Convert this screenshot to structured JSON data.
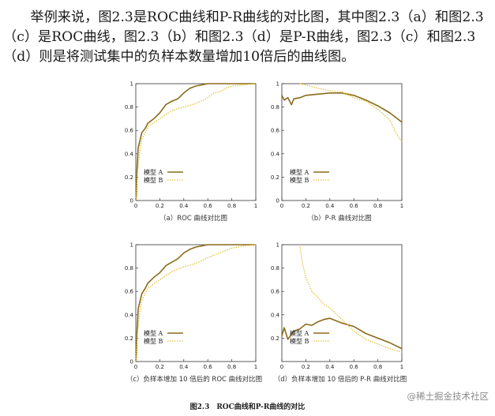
{
  "paragraph": "举例来说，图2.3是ROC曲线和P-R曲线的对比图，其中图2.3（a）和图2.3（c）是ROC曲线，图2.3（b）和图2.3（d）是P-R曲线，图2.3（c）和图2.3（d）则是将测试集中的负样本数量增加10倍后的曲线图。",
  "figure_caption": "图2.3　ROC曲线和P-R曲线的对比",
  "watermark": "@稀土掘金技术社区",
  "colors": {
    "model_a": "#8b6a1a",
    "model_b": "#e0c23a"
  },
  "chart_data": [
    {
      "type": "line",
      "caption": "（a）ROC 曲线对比图",
      "xlim": [
        0,
        1
      ],
      "ylim": [
        0,
        1
      ],
      "xticks": [
        "0",
        "0.2",
        "0.4",
        "0.6",
        "0.8",
        "1"
      ],
      "yticks": [
        "0",
        "0.2",
        "0.4",
        "0.6",
        "0.8",
        "1"
      ],
      "legend_placement": "bottom-left",
      "series": [
        {
          "name": "模型 A",
          "style": "solid",
          "x": [
            0,
            0.005,
            0.01,
            0.02,
            0.05,
            0.08,
            0.1,
            0.15,
            0.2,
            0.25,
            0.3,
            0.35,
            0.4,
            0.45,
            0.5,
            0.6,
            0.7,
            0.8,
            1
          ],
          "y": [
            0,
            0.06,
            0.25,
            0.45,
            0.58,
            0.62,
            0.66,
            0.7,
            0.75,
            0.82,
            0.85,
            0.87,
            0.92,
            0.96,
            0.98,
            1,
            1,
            1,
            1
          ]
        },
        {
          "name": "模型 B",
          "style": "dotted",
          "x": [
            0,
            0.01,
            0.03,
            0.05,
            0.1,
            0.2,
            0.3,
            0.4,
            0.5,
            0.6,
            0.65,
            0.7,
            0.75,
            0.8,
            0.9,
            1
          ],
          "y": [
            0,
            0.2,
            0.4,
            0.52,
            0.63,
            0.7,
            0.77,
            0.8,
            0.83,
            0.88,
            0.92,
            0.93,
            0.96,
            0.98,
            0.99,
            1
          ]
        }
      ]
    },
    {
      "type": "line",
      "caption": "（b）P-R 曲线对比图",
      "xlim": [
        0,
        1
      ],
      "ylim": [
        0,
        1
      ],
      "xticks": [
        "0",
        "0.2",
        "0.4",
        "0.6",
        "0.8",
        "1"
      ],
      "yticks": [
        "0",
        "0.2",
        "0.4",
        "0.6",
        "0.8",
        "1"
      ],
      "legend_placement": "bottom-left",
      "series": [
        {
          "name": "模型 A",
          "style": "solid",
          "x": [
            0,
            0.02,
            0.05,
            0.08,
            0.1,
            0.15,
            0.2,
            0.3,
            0.4,
            0.5,
            0.6,
            0.7,
            0.8,
            0.9,
            1
          ],
          "y": [
            0.9,
            0.86,
            0.88,
            0.82,
            0.87,
            0.88,
            0.9,
            0.91,
            0.92,
            0.92,
            0.9,
            0.86,
            0.81,
            0.75,
            0.67
          ]
        },
        {
          "name": "模型 B",
          "style": "dotted",
          "x": [
            0.15,
            0.2,
            0.3,
            0.4,
            0.5,
            0.6,
            0.7,
            0.8,
            0.9,
            0.95,
            1
          ],
          "y": [
            1,
            0.99,
            0.96,
            0.94,
            0.93,
            0.88,
            0.85,
            0.78,
            0.69,
            0.58,
            0.5
          ]
        }
      ]
    },
    {
      "type": "line",
      "caption": "（c）负样本增加 10 倍后的 ROC 曲线对比图",
      "xlim": [
        0,
        1
      ],
      "ylim": [
        0,
        1
      ],
      "xticks": [
        "0",
        "0.2",
        "0.4",
        "0.6",
        "0.8",
        "1"
      ],
      "yticks": [
        "0",
        "0.2",
        "0.4",
        "0.6",
        "0.8",
        "1"
      ],
      "legend_placement": "bottom-left",
      "series": [
        {
          "name": "模型 A",
          "style": "solid",
          "x": [
            0,
            0.005,
            0.01,
            0.02,
            0.05,
            0.08,
            0.1,
            0.15,
            0.2,
            0.25,
            0.3,
            0.35,
            0.4,
            0.45,
            0.5,
            0.6,
            0.7,
            0.8,
            1
          ],
          "y": [
            0,
            0.07,
            0.25,
            0.45,
            0.58,
            0.63,
            0.67,
            0.72,
            0.76,
            0.82,
            0.85,
            0.88,
            0.93,
            0.96,
            0.98,
            1,
            1,
            1,
            1
          ]
        },
        {
          "name": "模型 B",
          "style": "dotted",
          "x": [
            0,
            0.01,
            0.03,
            0.05,
            0.1,
            0.2,
            0.3,
            0.4,
            0.5,
            0.6,
            0.7,
            0.8,
            0.9,
            1
          ],
          "y": [
            0,
            0.2,
            0.4,
            0.52,
            0.63,
            0.7,
            0.77,
            0.81,
            0.84,
            0.89,
            0.93,
            0.97,
            0.99,
            1
          ]
        }
      ]
    },
    {
      "type": "line",
      "caption": "（d）负样本增加 10 倍后的 P-R 曲线对比图",
      "xlim": [
        0,
        1
      ],
      "ylim": [
        0,
        1
      ],
      "xticks": [
        "0",
        "0.2",
        "0.4",
        "0.6",
        "0.8",
        "1"
      ],
      "yticks": [
        "0.2",
        "0.4",
        "0.6",
        "0.8",
        "1"
      ],
      "legend_placement": "bottom-left",
      "series": [
        {
          "name": "模型 A",
          "style": "solid",
          "x": [
            0,
            0.02,
            0.05,
            0.1,
            0.15,
            0.2,
            0.25,
            0.3,
            0.35,
            0.4,
            0.45,
            0.5,
            0.6,
            0.7,
            0.8,
            0.9,
            1
          ],
          "y": [
            0.22,
            0.29,
            0.19,
            0.26,
            0.28,
            0.32,
            0.31,
            0.34,
            0.36,
            0.37,
            0.35,
            0.33,
            0.3,
            0.24,
            0.2,
            0.16,
            0.11
          ]
        },
        {
          "name": "模型 B",
          "style": "dotted",
          "x": [
            0.15,
            0.17,
            0.2,
            0.25,
            0.3,
            0.35,
            0.4,
            0.5,
            0.6,
            0.7,
            0.8,
            0.9,
            1
          ],
          "y": [
            1,
            0.85,
            0.72,
            0.6,
            0.55,
            0.49,
            0.46,
            0.36,
            0.26,
            0.19,
            0.15,
            0.11,
            0.08
          ]
        }
      ]
    }
  ]
}
